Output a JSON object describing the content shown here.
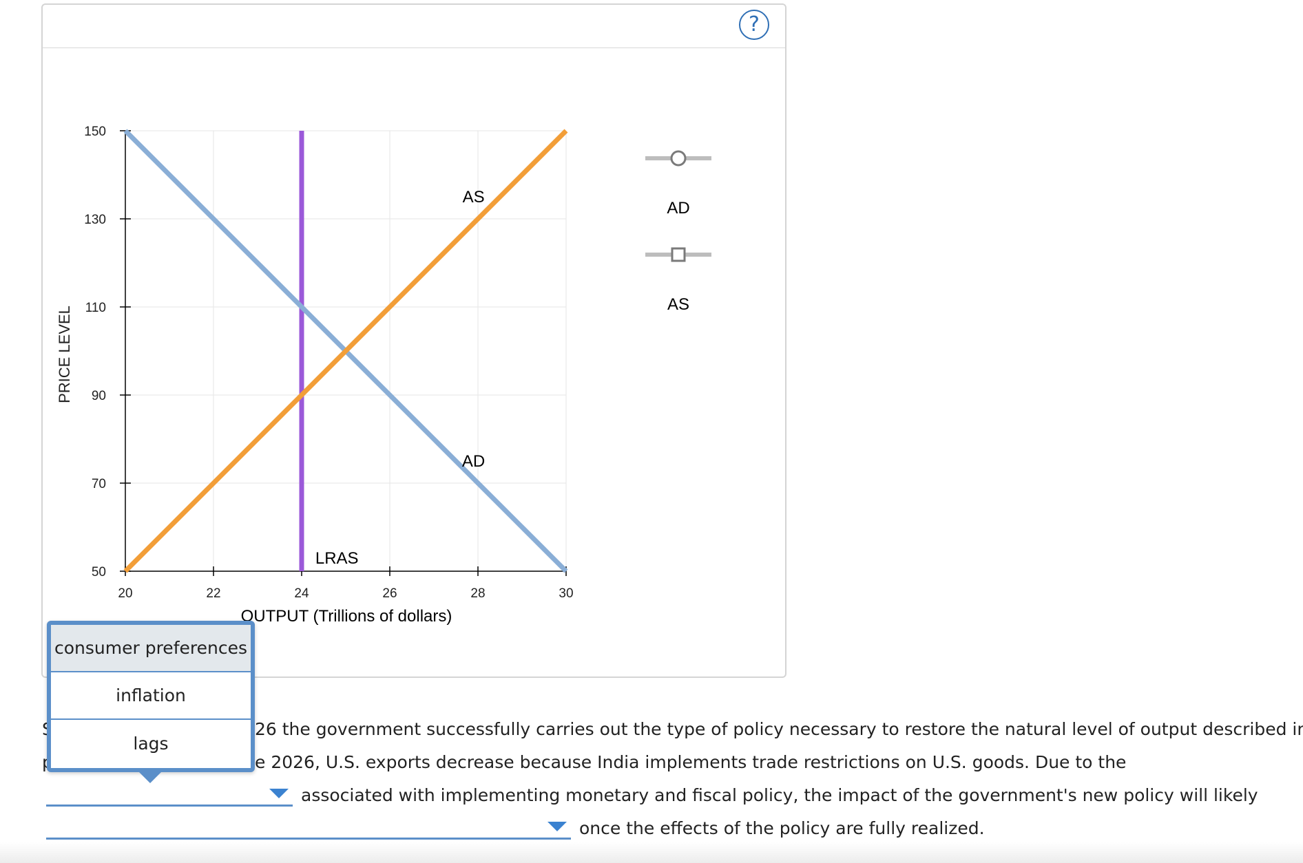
{
  "chart_data": {
    "type": "line",
    "title": "",
    "xlabel": "OUTPUT (Trillions of dollars)",
    "ylabel": "PRICE LEVEL",
    "xlim": [
      20,
      30
    ],
    "ylim": [
      50,
      150
    ],
    "x_ticks": [
      20,
      22,
      24,
      26,
      28,
      30
    ],
    "y_ticks": [
      50,
      70,
      90,
      110,
      130,
      150
    ],
    "grid": true,
    "series": [
      {
        "name": "AD",
        "color": "#8aaed6",
        "points": [
          [
            20,
            150
          ],
          [
            30,
            50
          ]
        ],
        "label_at": [
          27.9,
          75
        ]
      },
      {
        "name": "AS",
        "color": "#f29e38",
        "points": [
          [
            20,
            50
          ],
          [
            30,
            150
          ]
        ],
        "label_at": [
          27.9,
          135
        ]
      },
      {
        "name": "LRAS",
        "color": "#9b59d9",
        "points": [
          [
            24,
            50
          ],
          [
            24,
            150
          ]
        ],
        "label_at": [
          24.8,
          53
        ]
      }
    ],
    "legend": {
      "placement": "right",
      "items": [
        {
          "name": "AD",
          "marker": "circle"
        },
        {
          "name": "AS",
          "marker": "square"
        }
      ]
    }
  },
  "help_icon": {
    "symbol": "?"
  },
  "question": {
    "line1_start": "S",
    "line1_rest": "26 the government successfully carries out the type of policy necessary to restore the natural level of output described in the",
    "line2_start": "p",
    "line2_rest": "e 2026, U.S. exports decrease because India implements trade restrictions on U.S. goods. Due to the",
    "line3_rest": "associated with implementing monetary and fiscal policy, the impact of the government's new policy will likely",
    "line4_rest": "once the effects of the policy are fully realized."
  },
  "dropdown_options": [
    "consumer preferences",
    "inflation",
    "lags"
  ],
  "colors": {
    "accent": "#5b8fc9",
    "grid": "#e6e6e6"
  }
}
